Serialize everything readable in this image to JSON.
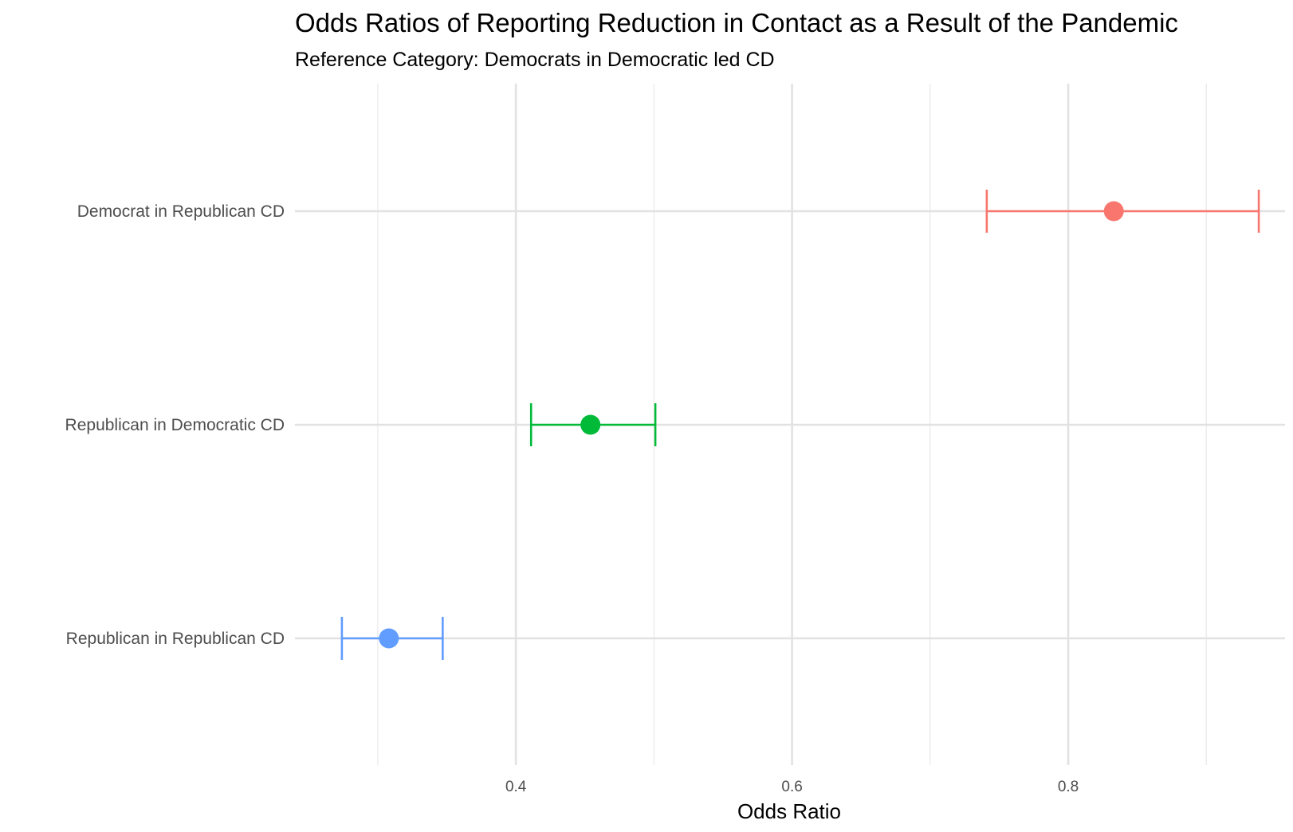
{
  "chart_data": {
    "type": "scatter",
    "title": "Odds Ratios of Reporting Reduction in Contact as a Result of the Pandemic",
    "subtitle": "Reference Category: Democrats in Democratic led CD",
    "xlabel": "Odds Ratio",
    "ylabel": "",
    "xlim": [
      0.24,
      0.957
    ],
    "x_ticks": [
      0.4,
      0.6,
      0.8
    ],
    "x_tick_labels": [
      "0.4",
      "0.6",
      "0.8"
    ],
    "x_minor_gridlines": [
      0.3,
      0.5,
      0.7,
      0.9
    ],
    "grid": true,
    "legend": "none",
    "categories": [
      "Democrat in Republican CD",
      "Republican in Democratic CD",
      "Republican in Republican CD"
    ],
    "series": [
      {
        "category": "Democrat in Republican CD",
        "estimate": 0.833,
        "ci_low": 0.741,
        "ci_high": 0.938,
        "color": "#F8766D"
      },
      {
        "category": "Republican in Democratic CD",
        "estimate": 0.454,
        "ci_low": 0.411,
        "ci_high": 0.501,
        "color": "#00BA38"
      },
      {
        "category": "Republican in Republican CD",
        "estimate": 0.308,
        "ci_low": 0.274,
        "ci_high": 0.347,
        "color": "#619CFF"
      }
    ]
  }
}
